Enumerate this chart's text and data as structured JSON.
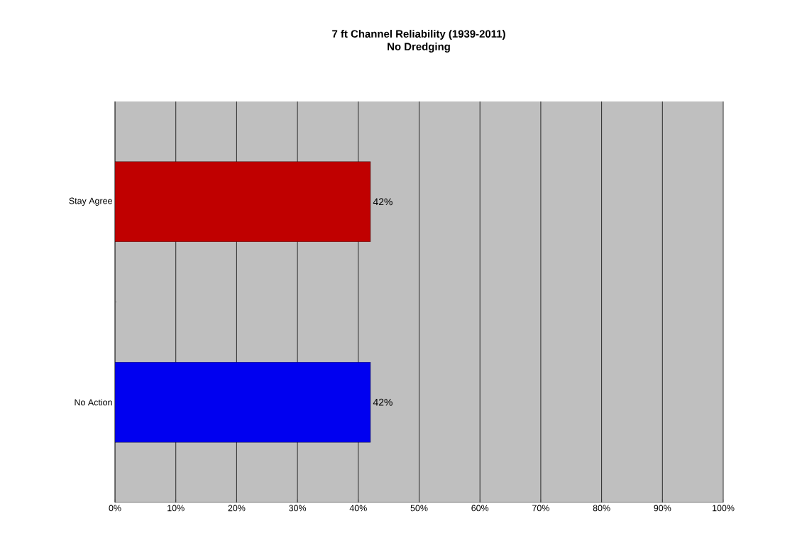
{
  "chart_data": {
    "type": "bar",
    "orientation": "horizontal",
    "title": "7 ft Channel Reliability (1939-2011)",
    "subtitle": "No Dredging",
    "categories": [
      "Stay Agree",
      "No Action"
    ],
    "values": [
      42,
      42
    ],
    "colors": [
      "#c00000",
      "#0000f0"
    ],
    "value_labels": [
      "42%",
      "42%"
    ],
    "xlim": [
      0,
      100
    ],
    "xticks": [
      {
        "value": 0,
        "label": "0%"
      },
      {
        "value": 10,
        "label": "10%"
      },
      {
        "value": 20,
        "label": "20%"
      },
      {
        "value": 30,
        "label": "30%"
      },
      {
        "value": 40,
        "label": "40%"
      },
      {
        "value": 50,
        "label": "50%"
      },
      {
        "value": 60,
        "label": "60%"
      },
      {
        "value": 70,
        "label": "70%"
      },
      {
        "value": 80,
        "label": "80%"
      },
      {
        "value": 90,
        "label": "90%"
      },
      {
        "value": 100,
        "label": "100%"
      }
    ],
    "grid": "x"
  }
}
